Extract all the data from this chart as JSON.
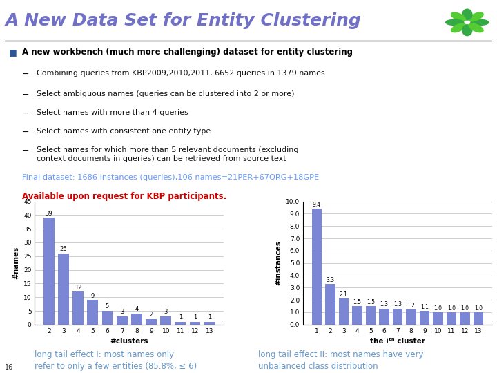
{
  "title": "A New Data Set for Entity Clustering",
  "title_color": "#7070C8",
  "title_fontsize": 18,
  "bg_color": "#FFFFFF",
  "bullet_header": "A new workbench (much more challenging) dataset for entity clustering",
  "bullet_color": "#000000",
  "bullet_square_color": "#2F5496",
  "sub_bullets": [
    "Combining queries from KBP2009,2010,2011, 6652 queries in 1379 names",
    "Select ambiguous names (queries can be clustered into 2 or more)",
    "Select names with more than 4 queries",
    "Select names with consistent one entity type",
    "Select names for which more than 5 relevant documents (excluding\n      context documents in queries) can be retrieved from source text"
  ],
  "final_line": "Final dataset: 1686 instances (queries),106 names=21PER+67ORG+18GPE",
  "final_line_color": "#6699FF",
  "avail_line": "Available upon request for KBP participants.",
  "avail_line_color": "#CC0000",
  "chart1_x": [
    2,
    3,
    4,
    5,
    6,
    7,
    8,
    9,
    10,
    11,
    12,
    13
  ],
  "chart1_y": [
    39,
    26,
    12,
    9,
    5,
    3,
    4,
    2,
    3,
    1,
    1,
    1
  ],
  "chart1_xlabel": "#clusters",
  "chart1_ylabel": "#names",
  "chart1_ylim": [
    0,
    45
  ],
  "chart1_yticks": [
    0,
    5,
    10,
    15,
    20,
    25,
    30,
    35,
    40,
    45
  ],
  "chart1_bar_color": "#7B86D4",
  "chart1_caption1": "long tail effect I: most names only",
  "chart1_caption2": "refer to only a few entities (85.8%, ≤ 6)",
  "chart1_caption_color": "#6699CC",
  "chart2_x": [
    1,
    2,
    3,
    4,
    5,
    6,
    7,
    8,
    9,
    10,
    11,
    12,
    13
  ],
  "chart2_y": [
    9.4,
    3.3,
    2.1,
    1.5,
    1.5,
    1.3,
    1.3,
    1.2,
    1.1,
    1.0,
    1.0,
    1.0,
    1.0
  ],
  "chart2_xlabel": "the iᵗʰ cluster",
  "chart2_ylabel": "#instances",
  "chart2_ylim": [
    0,
    10
  ],
  "chart2_yticks": [
    0.0,
    1.0,
    2.0,
    3.0,
    4.0,
    5.0,
    6.0,
    7.0,
    8.0,
    9.0,
    10.0
  ],
  "chart2_bar_color": "#7B86D4",
  "chart2_caption1": "long tail effect II: most names have very",
  "chart2_caption2": "unbalanced class distribution",
  "chart2_caption_color": "#6699CC",
  "slide_num": "16"
}
